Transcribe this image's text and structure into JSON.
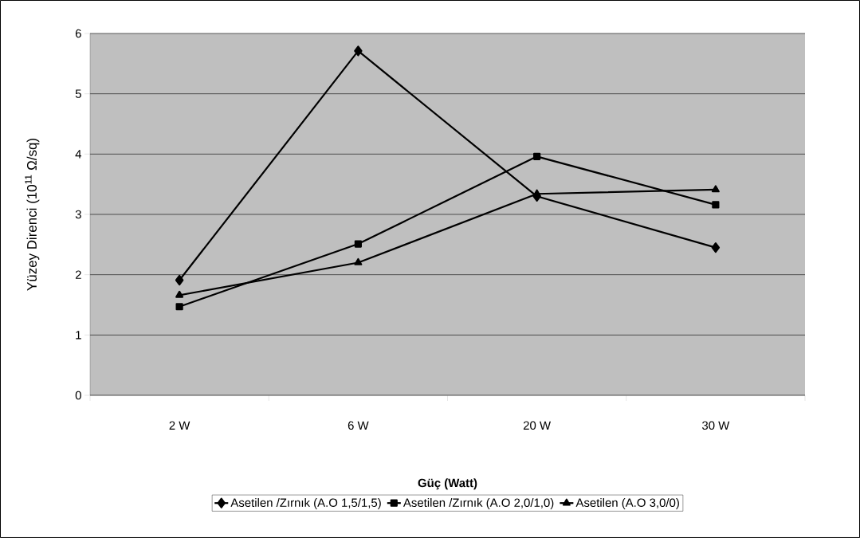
{
  "chart_data": {
    "type": "line",
    "xlabel": "Güç (Watt)",
    "ylabel": "Yüzey Direnci (10$^{11}$ Ω/sq)",
    "categories": [
      "2 W",
      "6 W",
      "20 W",
      "30 W"
    ],
    "series": [
      {
        "name": "Asetilen /Zırnık (A.O 1,5/1,5)",
        "color": "#000000",
        "marker": "diamond",
        "values": [
          1.91,
          5.71,
          3.3,
          2.45
        ]
      },
      {
        "name": "Asetilen /Zırnık (A.O 2,0/1,0)",
        "color": "#000000",
        "marker": "square",
        "values": [
          1.47,
          2.51,
          3.96,
          3.16
        ]
      },
      {
        "name": "Asetilen (A.O 3,0/0)",
        "color": "#000000",
        "marker": "triangle",
        "values": [
          1.66,
          2.2,
          3.34,
          3.41
        ]
      }
    ],
    "ylim": [
      0,
      6
    ],
    "yticks": [
      0,
      1,
      2,
      3,
      4,
      5,
      6
    ],
    "grid": "y",
    "legend": "bottom",
    "line_style": "solid"
  }
}
